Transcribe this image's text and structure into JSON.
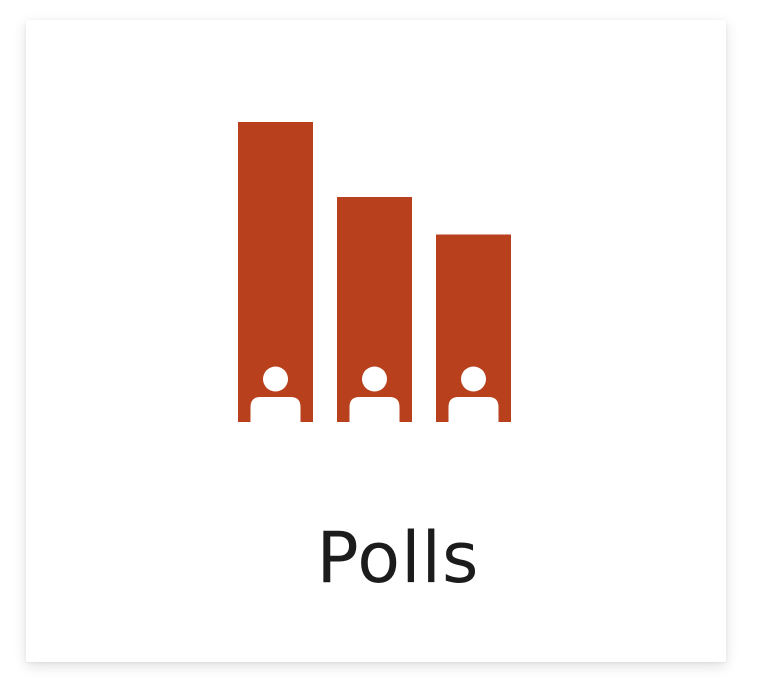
{
  "tile": {
    "label": "Polls",
    "accent_color": "#b8401c",
    "text_color": "#1c1c1c"
  },
  "icon": {
    "name": "polls-icon",
    "bars": [
      {
        "level": 1.0,
        "figure": "person-icon"
      },
      {
        "level": 0.75,
        "figure": "person-icon"
      },
      {
        "level": 0.625,
        "figure": "person-icon"
      }
    ]
  }
}
